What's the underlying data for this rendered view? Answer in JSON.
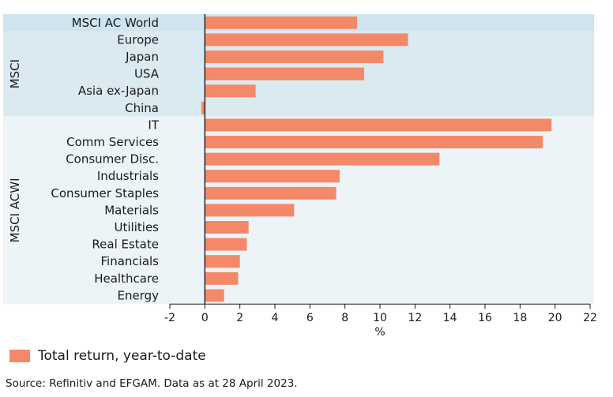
{
  "chart_data": {
    "type": "bar",
    "orientation": "horizontal",
    "xlabel": "%",
    "xlim": [
      -2,
      22
    ],
    "xticks": [
      -2,
      0,
      2,
      4,
      6,
      8,
      10,
      12,
      14,
      16,
      18,
      20,
      22
    ],
    "groups": [
      {
        "name": "",
        "color": "#cfe4ee",
        "categories": [
          "MSCI AC World"
        ]
      },
      {
        "name": "MSCI",
        "color": "#dbeaf1",
        "categories": [
          "Europe",
          "Japan",
          "USA",
          "Asia ex-Japan",
          "China"
        ]
      },
      {
        "name": "MSCI ACWI",
        "color": "#edf4f8",
        "categories": [
          "IT",
          "Comm Services",
          "Consumer Disc.",
          "Industrials",
          "Consumer Staples",
          "Materials",
          "Utilities",
          "Real Estate",
          "Financials",
          "Healthcare",
          "Energy"
        ]
      }
    ],
    "categories": [
      "MSCI AC World",
      "Europe",
      "Japan",
      "USA",
      "Asia ex-Japan",
      "China",
      "IT",
      "Comm Services",
      "Consumer Disc.",
      "Industrials",
      "Consumer Staples",
      "Materials",
      "Utilities",
      "Real Estate",
      "Financials",
      "Healthcare",
      "Energy"
    ],
    "series": [
      {
        "name": "Total return, year-to-date",
        "color": "#f4896a",
        "values": [
          8.7,
          11.6,
          10.2,
          9.1,
          2.9,
          -0.2,
          19.8,
          19.3,
          13.4,
          7.7,
          7.5,
          5.1,
          2.5,
          2.4,
          2.0,
          1.9,
          1.1
        ]
      }
    ]
  },
  "legend": {
    "label": "Total return, year-to-date",
    "color": "#f4896a"
  },
  "source": "Source: Refinitiv and EFGAM. Data as at 28 April 2023."
}
